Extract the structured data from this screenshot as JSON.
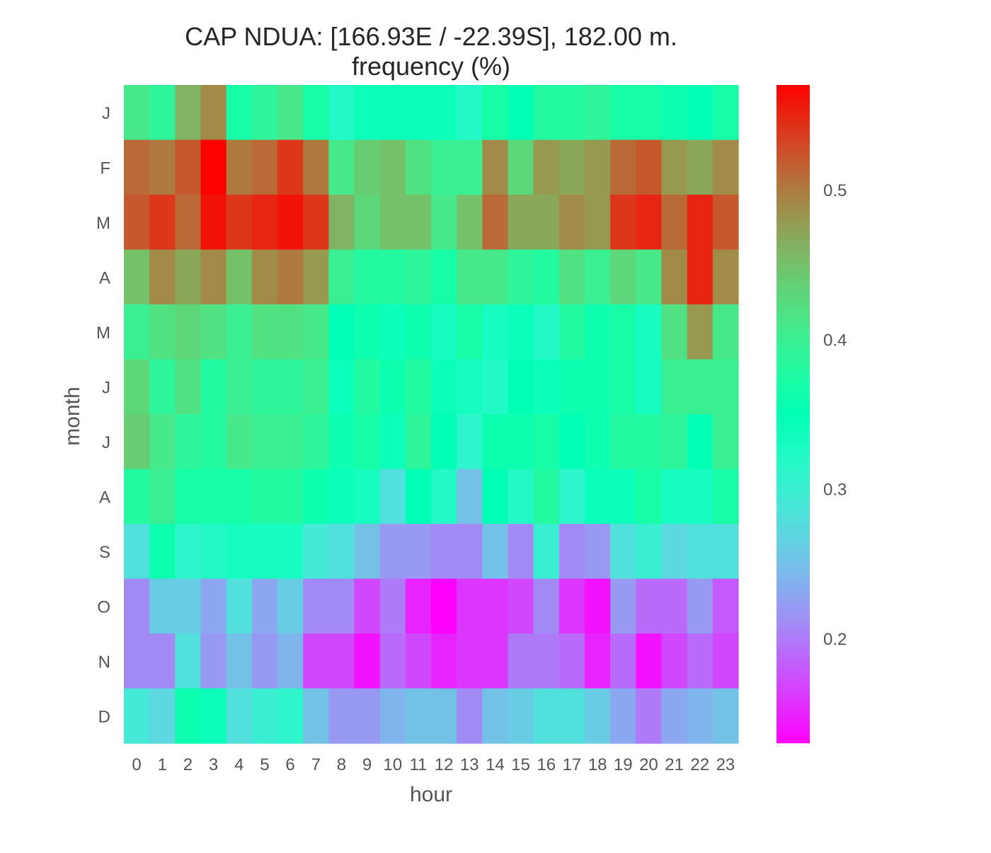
{
  "chart_data": {
    "type": "heatmap",
    "title": "CAP NDUA: [166.93E / -22.39S], 182.00 m.",
    "subtitle": "frequency (%)",
    "xlabel": "hour",
    "ylabel": "month",
    "x_categories": [
      "0",
      "1",
      "2",
      "3",
      "4",
      "5",
      "6",
      "7",
      "8",
      "9",
      "10",
      "11",
      "12",
      "13",
      "14",
      "15",
      "16",
      "17",
      "18",
      "19",
      "20",
      "21",
      "22",
      "23"
    ],
    "y_categories": [
      "J",
      "F",
      "M",
      "A",
      "M",
      "J",
      "J",
      "A",
      "S",
      "O",
      "N",
      "D"
    ],
    "values": [
      [
        0.41,
        0.39,
        0.46,
        0.49,
        0.37,
        0.39,
        0.41,
        0.37,
        0.32,
        0.34,
        0.34,
        0.34,
        0.34,
        0.32,
        0.37,
        0.35,
        0.38,
        0.38,
        0.39,
        0.37,
        0.37,
        0.36,
        0.35,
        0.37
      ],
      [
        0.51,
        0.5,
        0.52,
        0.57,
        0.5,
        0.51,
        0.54,
        0.5,
        0.41,
        0.44,
        0.45,
        0.42,
        0.4,
        0.4,
        0.49,
        0.43,
        0.48,
        0.47,
        0.48,
        0.51,
        0.52,
        0.48,
        0.47,
        0.49
      ],
      [
        0.52,
        0.54,
        0.51,
        0.56,
        0.54,
        0.55,
        0.56,
        0.54,
        0.46,
        0.43,
        0.45,
        0.45,
        0.41,
        0.45,
        0.51,
        0.47,
        0.47,
        0.49,
        0.48,
        0.54,
        0.55,
        0.51,
        0.55,
        0.52
      ],
      [
        0.45,
        0.49,
        0.47,
        0.49,
        0.45,
        0.49,
        0.5,
        0.48,
        0.4,
        0.38,
        0.38,
        0.39,
        0.37,
        0.41,
        0.41,
        0.39,
        0.38,
        0.42,
        0.4,
        0.43,
        0.41,
        0.49,
        0.55,
        0.49
      ],
      [
        0.4,
        0.42,
        0.43,
        0.42,
        0.4,
        0.42,
        0.42,
        0.41,
        0.35,
        0.36,
        0.34,
        0.36,
        0.33,
        0.37,
        0.33,
        0.34,
        0.32,
        0.38,
        0.36,
        0.37,
        0.33,
        0.42,
        0.48,
        0.41
      ],
      [
        0.43,
        0.39,
        0.42,
        0.38,
        0.4,
        0.39,
        0.39,
        0.4,
        0.34,
        0.38,
        0.36,
        0.38,
        0.34,
        0.33,
        0.32,
        0.35,
        0.34,
        0.36,
        0.36,
        0.37,
        0.33,
        0.4,
        0.4,
        0.4
      ],
      [
        0.44,
        0.41,
        0.39,
        0.38,
        0.41,
        0.4,
        0.4,
        0.39,
        0.36,
        0.37,
        0.34,
        0.39,
        0.35,
        0.31,
        0.36,
        0.36,
        0.37,
        0.35,
        0.36,
        0.38,
        0.38,
        0.39,
        0.35,
        0.4
      ],
      [
        0.38,
        0.4,
        0.37,
        0.37,
        0.37,
        0.38,
        0.38,
        0.36,
        0.34,
        0.33,
        0.28,
        0.35,
        0.32,
        0.25,
        0.35,
        0.32,
        0.38,
        0.31,
        0.34,
        0.34,
        0.37,
        0.33,
        0.33,
        0.37
      ],
      [
        0.28,
        0.36,
        0.31,
        0.32,
        0.33,
        0.33,
        0.33,
        0.29,
        0.28,
        0.25,
        0.22,
        0.22,
        0.21,
        0.21,
        0.25,
        0.21,
        0.3,
        0.21,
        0.22,
        0.28,
        0.3,
        0.27,
        0.28,
        0.28
      ],
      [
        0.21,
        0.26,
        0.26,
        0.23,
        0.28,
        0.23,
        0.26,
        0.21,
        0.21,
        0.17,
        0.2,
        0.15,
        0.13,
        0.16,
        0.16,
        0.17,
        0.21,
        0.16,
        0.14,
        0.22,
        0.19,
        0.19,
        0.22,
        0.18
      ],
      [
        0.21,
        0.21,
        0.28,
        0.22,
        0.25,
        0.22,
        0.24,
        0.17,
        0.17,
        0.14,
        0.19,
        0.17,
        0.15,
        0.16,
        0.16,
        0.2,
        0.2,
        0.19,
        0.15,
        0.19,
        0.14,
        0.17,
        0.19,
        0.17
      ],
      [
        0.29,
        0.27,
        0.36,
        0.34,
        0.28,
        0.3,
        0.31,
        0.25,
        0.22,
        0.22,
        0.24,
        0.25,
        0.25,
        0.21,
        0.25,
        0.26,
        0.28,
        0.28,
        0.26,
        0.23,
        0.2,
        0.23,
        0.24,
        0.25
      ]
    ],
    "colormap": "rainbow",
    "vmin": 0.13,
    "vmax": 0.57,
    "colorbar_ticks": [
      "0.2",
      "0.3",
      "0.4",
      "0.5"
    ],
    "colorbar_tick_values": [
      0.2,
      0.3,
      0.4,
      0.5
    ],
    "grid": false
  }
}
